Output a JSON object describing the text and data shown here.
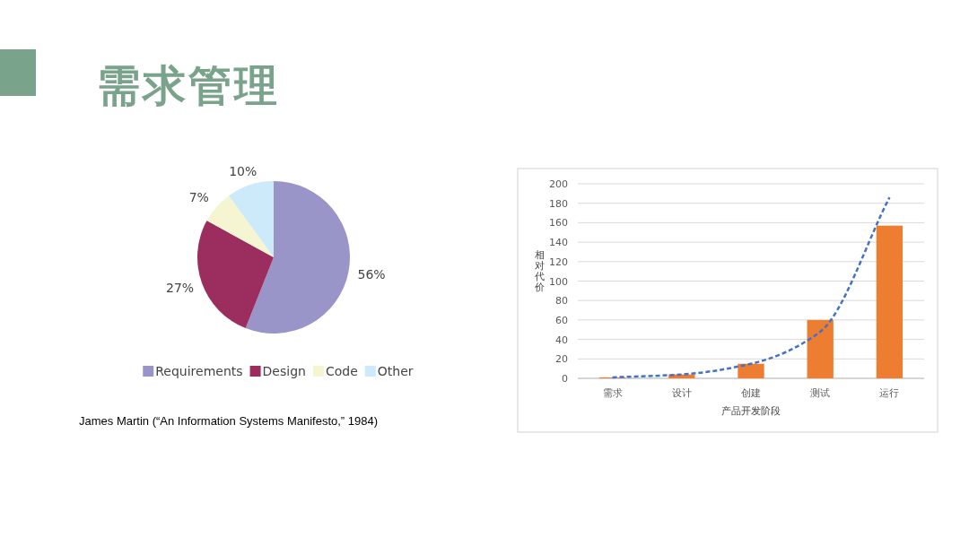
{
  "chart_data": [
    {
      "type": "pie",
      "title": "需求管理",
      "categories": [
        "Requirements",
        "Design",
        "Code",
        "Other"
      ],
      "values": [
        56,
        27,
        7,
        10
      ],
      "value_labels": [
        "56%",
        "27%",
        "7%",
        "10%"
      ],
      "colors": [
        "#9995c8",
        "#9b2d5f",
        "#f6f5d2",
        "#cdeafa"
      ],
      "legend": "bottom",
      "annotations": [
        "James Martin (“An Information Systems Manifesto,” 1984)"
      ]
    },
    {
      "type": "bar",
      "xlabel": "产品开发阶段",
      "ylabel": "相对代价",
      "categories": [
        "需求",
        "设计",
        "创建",
        "测试",
        "运行"
      ],
      "series": [
        {
          "type": "bar",
          "color": "#ed7d31",
          "values": [
            1,
            4,
            15,
            60,
            157
          ]
        },
        {
          "type": "line",
          "color": "#4472c4",
          "line_style": "dashed",
          "marker": "none",
          "values": [
            1,
            4,
            15,
            48,
            186
          ]
        }
      ],
      "ylim": [
        0,
        200
      ],
      "yticks": [
        0,
        20,
        40,
        60,
        80,
        100,
        120,
        140,
        160,
        180,
        200
      ],
      "grid": "y"
    }
  ]
}
